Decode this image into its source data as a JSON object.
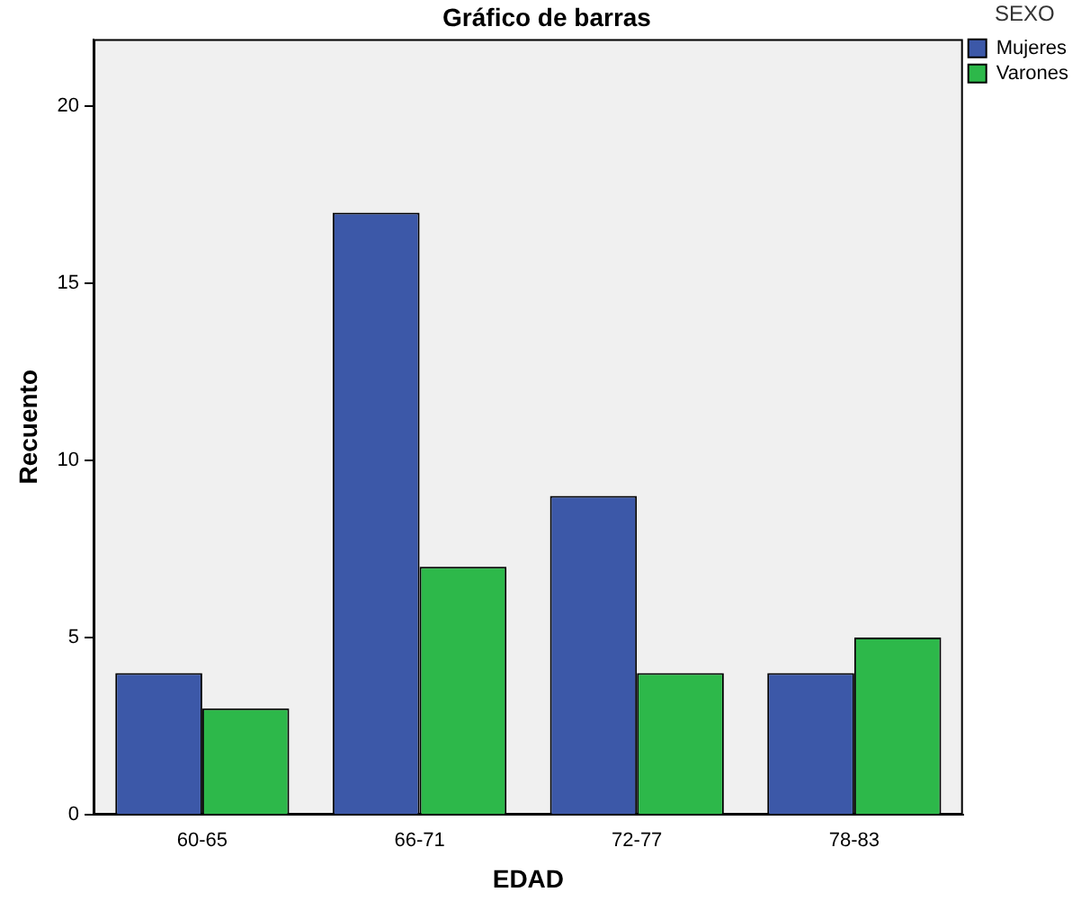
{
  "chart_data": {
    "type": "bar",
    "title": "Gráfico de barras",
    "xlabel": "EDAD",
    "ylabel": "Recuento",
    "legend_title": "SEXO",
    "categories": [
      "60-65",
      "66-71",
      "72-77",
      "78-83"
    ],
    "series": [
      {
        "name": "Mujeres",
        "color": "#3c58a8",
        "values": [
          4,
          17,
          9,
          4
        ]
      },
      {
        "name": "Varones",
        "color": "#2db84a",
        "values": [
          3,
          7,
          4,
          5
        ]
      }
    ],
    "ylim": [
      0,
      21.9
    ],
    "yticks": [
      0,
      5,
      10,
      15,
      20
    ],
    "grid": false,
    "legend": "top right"
  }
}
